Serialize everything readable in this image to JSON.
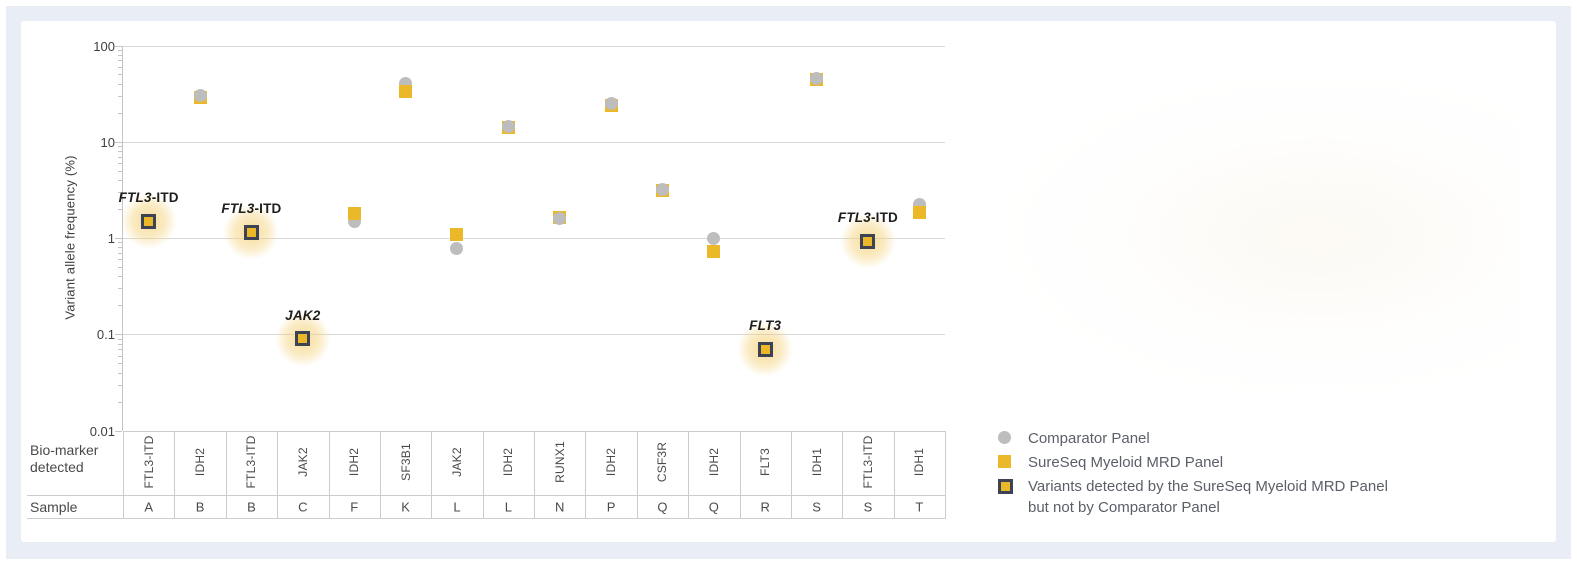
{
  "axis": {
    "y_title": "Variant allele frequency (%)",
    "biomarker_row_label_line1": "Bio-marker",
    "biomarker_row_label_line2": "detected",
    "sample_row_label": "Sample"
  },
  "legend": {
    "comparator_label": "Comparator Panel",
    "sureseq_label": "SureSeq Myeloid MRD Panel",
    "variants_label_line1": "Variants detected by the SureSeq Myeloid MRD Panel",
    "variants_label_line2": "but not by Comparator Panel"
  },
  "colors": {
    "sureseq_yellow": "#EAB829",
    "comparator_gray": "#BDBDBD",
    "highlight_border_navy": "#3D4254",
    "halo_yellow": "#F4CE6E",
    "grid_gray": "#D9D9D9",
    "table_line_gray": "#CCCCCC",
    "frame_lavender": "#E9EDF6"
  },
  "chart_data": {
    "type": "scatter",
    "y_scale": "log",
    "ylim": [
      0.01,
      100
    ],
    "ylabel": "Variant allele frequency (%)",
    "y_ticks": [
      100,
      10,
      1,
      0.1,
      0.01
    ],
    "y_tick_labels": [
      "100",
      "10",
      "1",
      "0.1",
      "0.01"
    ],
    "grid": true,
    "legend_position": "right",
    "series_names": [
      "Comparator Panel",
      "SureSeq Myeloid MRD Panel"
    ],
    "points": [
      {
        "sample": "A",
        "biomarker": "FTL3-ITD",
        "comparator": null,
        "sureseq": 1.5,
        "sureseq_only": true,
        "annotation_italic": "FTL3",
        "annotation_rest": "-ITD"
      },
      {
        "sample": "B",
        "biomarker": "IDH2",
        "comparator": 30,
        "sureseq": 29,
        "sureseq_only": false
      },
      {
        "sample": "B",
        "biomarker": "FTL3-ITD",
        "comparator": null,
        "sureseq": 1.15,
        "sureseq_only": true,
        "annotation_italic": "FTL3",
        "annotation_rest": "-ITD"
      },
      {
        "sample": "C",
        "biomarker": "JAK2",
        "comparator": null,
        "sureseq": 0.09,
        "sureseq_only": true,
        "annotation_italic": "JAK2",
        "annotation_rest": ""
      },
      {
        "sample": "F",
        "biomarker": "IDH2",
        "comparator": 1.5,
        "sureseq": 1.8,
        "sureseq_only": false
      },
      {
        "sample": "K",
        "biomarker": "SF3B1",
        "comparator": 40,
        "sureseq": 33,
        "sureseq_only": false
      },
      {
        "sample": "L",
        "biomarker": "JAK2",
        "comparator": 0.78,
        "sureseq": 1.1,
        "sureseq_only": false
      },
      {
        "sample": "L",
        "biomarker": "IDH2",
        "comparator": 14.5,
        "sureseq": 14,
        "sureseq_only": false
      },
      {
        "sample": "N",
        "biomarker": "RUNX1",
        "comparator": 1.6,
        "sureseq": 1.65,
        "sureseq_only": false
      },
      {
        "sample": "P",
        "biomarker": "IDH2",
        "comparator": 25,
        "sureseq": 24,
        "sureseq_only": false
      },
      {
        "sample": "Q",
        "biomarker": "CSF3R",
        "comparator": 3.2,
        "sureseq": 3.1,
        "sureseq_only": false
      },
      {
        "sample": "Q",
        "biomarker": "IDH2",
        "comparator": 1.0,
        "sureseq": 0.73,
        "sureseq_only": false
      },
      {
        "sample": "R",
        "biomarker": "FLT3",
        "comparator": null,
        "sureseq": 0.07,
        "sureseq_only": true,
        "annotation_italic": "FLT3",
        "annotation_rest": ""
      },
      {
        "sample": "S",
        "biomarker": "IDH1",
        "comparator": 45,
        "sureseq": 44,
        "sureseq_only": false
      },
      {
        "sample": "S",
        "biomarker": "FTL3-ITD",
        "comparator": null,
        "sureseq": 0.93,
        "sureseq_only": true,
        "annotation_italic": "FTL3",
        "annotation_rest": "-ITD"
      },
      {
        "sample": "T",
        "biomarker": "IDH1",
        "comparator": 2.25,
        "sureseq": 1.85,
        "sureseq_only": false
      }
    ]
  }
}
